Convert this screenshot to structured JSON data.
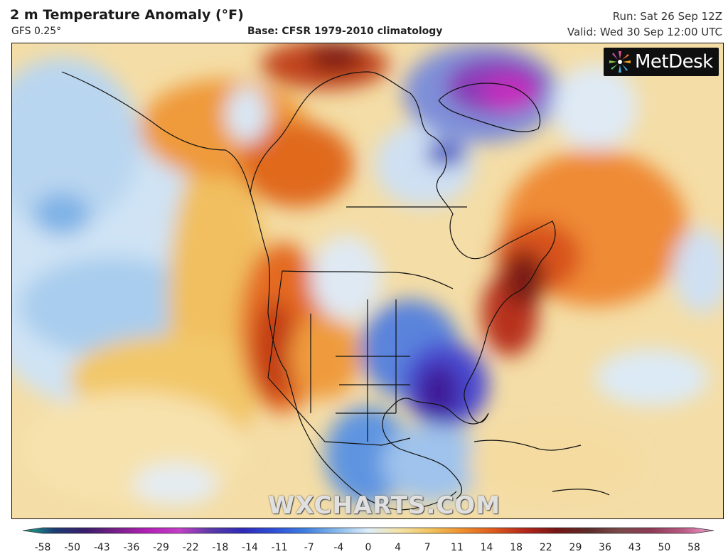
{
  "header": {
    "title": "2 m Temperature Anomaly (°F)",
    "model": "GFS 0.25°",
    "base": "Base: CFSR 1979-2010 climatology",
    "run": "Run: Sat 26 Sep 12Z",
    "valid": "Valid: Wed 30 Sep 12:00 UTC"
  },
  "logo": {
    "text": "MetDesk"
  },
  "watermark": "WXCHARTS.COM",
  "colorbar": {
    "ticks": [
      "-58",
      "-50",
      "-43",
      "-36",
      "-29",
      "-22",
      "-18",
      "-14",
      "-11",
      "-7",
      "-4",
      "0",
      "4",
      "7",
      "11",
      "14",
      "18",
      "22",
      "29",
      "36",
      "43",
      "50",
      "58"
    ],
    "colors": [
      "#1fae8f",
      "#1c3d73",
      "#3a1d6b",
      "#7a1f8a",
      "#b41fb8",
      "#c23fc6",
      "#5a3aa8",
      "#2e2ab8",
      "#2f4fd6",
      "#3f7fe0",
      "#86b9ea",
      "#dfeefa",
      "#f3e2a4",
      "#f2c25c",
      "#ef8e2c",
      "#de5a1c",
      "#b2261a",
      "#741614",
      "#5b2d2a",
      "#7a4a4a",
      "#8e3b56",
      "#b85a82",
      "#f2a0d2"
    ]
  },
  "colors": {
    "warm_anomaly": "#e0601e",
    "strong_warm": "#8c1a14",
    "cold_anomaly": "#3a5fd0",
    "strong_cold": "#3a1a8a",
    "neutral": "#f6dca0",
    "greenland_anomaly": "#b62fc0"
  }
}
